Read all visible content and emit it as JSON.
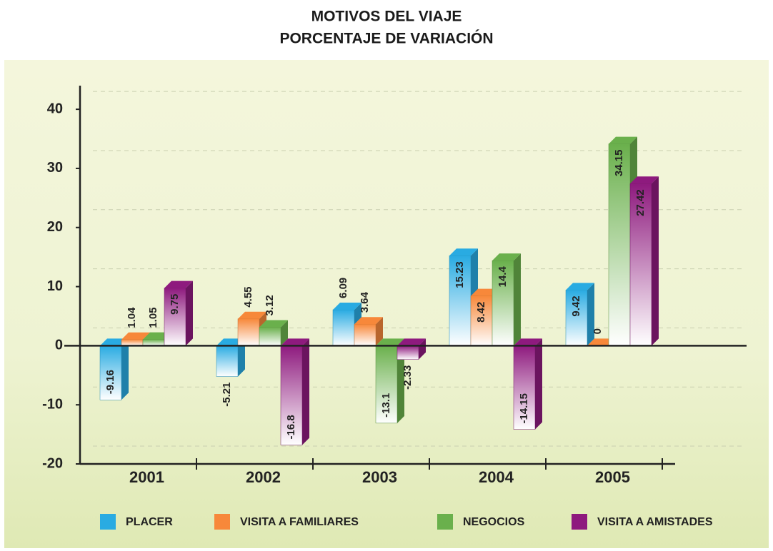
{
  "chart_data": {
    "type": "bar",
    "title": "MOTIVOS DEL VIAJE",
    "subtitle": "PORCENTAJE DE VARIACIÓN",
    "categories": [
      "2001",
      "2002",
      "2003",
      "2004",
      "2005"
    ],
    "series": [
      {
        "name": "PLACER",
        "color": "#29abe2",
        "values": [
          -9.16,
          -5.21,
          6.09,
          15.23,
          9.42
        ]
      },
      {
        "name": "VISITA A FAMILIARES",
        "color": "#f7883a",
        "values": [
          1.04,
          4.55,
          3.64,
          8.42,
          0
        ]
      },
      {
        "name": "NEGOCIOS",
        "color": "#6ab04c",
        "values": [
          1.05,
          3.12,
          -13.1,
          14.4,
          34.15
        ]
      },
      {
        "name": "VISITA A AMISTADES",
        "color": "#8e1a7e",
        "values": [
          9.75,
          -16.8,
          -2.33,
          -14.15,
          27.42
        ]
      }
    ],
    "ylim": [
      -20,
      44
    ],
    "yticks": [
      -20,
      -10,
      0,
      10,
      20,
      30,
      40
    ],
    "grid": true,
    "legend": "bottom"
  }
}
